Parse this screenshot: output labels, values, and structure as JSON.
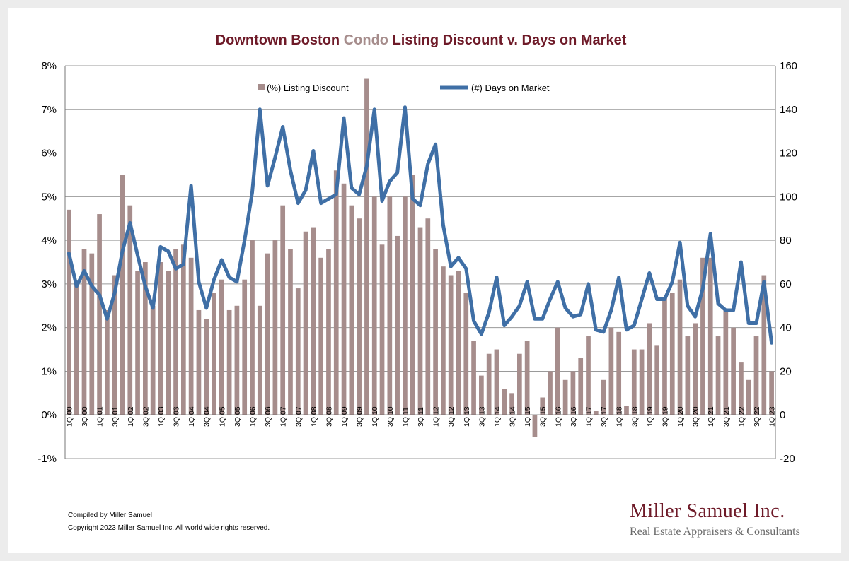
{
  "chart_data": {
    "type": "bar",
    "title_parts": [
      "Downtown Boston ",
      "Condo",
      " Listing Discount v. Days on Market"
    ],
    "left_axis": {
      "min": -1,
      "max": 8,
      "step": 1,
      "suffix": "%"
    },
    "right_axis": {
      "min": -20,
      "max": 160,
      "step": 20
    },
    "x_labels": [
      "1Q 00",
      "3Q 00",
      "1Q 01",
      "3Q 01",
      "1Q 02",
      "3Q 02",
      "1Q 03",
      "3Q 03",
      "1Q 04",
      "3Q 04",
      "1Q 05",
      "3Q 05",
      "1Q 06",
      "3Q 06",
      "1Q 07",
      "3Q 07",
      "1Q 08",
      "3Q 08",
      "1Q 09",
      "3Q 09",
      "1Q 10",
      "3Q 10",
      "1Q 11",
      "3Q 11",
      "1Q 12",
      "3Q 12",
      "1Q 13",
      "3Q 13",
      "1Q 14",
      "3Q 14",
      "1Q 15",
      "3Q 15",
      "1Q 16",
      "3Q 16",
      "1Q 17",
      "3Q 17",
      "1Q 18",
      "3Q 18",
      "1Q 19",
      "3Q 19",
      "1Q 20",
      "3Q 20",
      "1Q 21",
      "3Q 21",
      "1Q 22",
      "3Q 22",
      "1Q 23"
    ],
    "series": [
      {
        "name": "(%) Listing Discount",
        "type": "bar",
        "color": "#a68d8c",
        "values": [
          4.7,
          3.0,
          3.8,
          3.7,
          4.6,
          2.4,
          3.2,
          5.5,
          4.8,
          3.3,
          3.5,
          2.5,
          3.5,
          3.3,
          3.8,
          3.9,
          3.6,
          2.4,
          2.2,
          2.8,
          3.1,
          2.4,
          2.5,
          3.1,
          4.0,
          2.5,
          3.7,
          4.0,
          4.8,
          3.8,
          2.9,
          4.2,
          4.3,
          3.6,
          3.8,
          5.6,
          5.3,
          4.8,
          4.5,
          7.7,
          5.0,
          3.9,
          5.0,
          4.1,
          5.0,
          5.5,
          4.3,
          4.5,
          3.8,
          3.4,
          3.2,
          3.3,
          2.8,
          1.7,
          0.9,
          1.4,
          1.5,
          0.6,
          0.5,
          1.4,
          1.7,
          -0.5,
          0.4,
          1.0,
          2.0,
          0.8,
          1.0,
          1.3,
          1.8,
          0.1,
          0.8,
          2.0,
          1.9,
          0.2,
          1.5,
          1.5,
          2.1,
          1.6,
          2.7,
          2.8,
          3.1,
          1.8,
          2.1,
          3.6,
          3.6,
          1.8,
          2.4,
          2.0,
          1.2,
          0.8,
          1.8,
          3.2,
          1.0
        ]
      },
      {
        "name": "(#) Days on Market",
        "type": "line",
        "color": "#3f6fa6",
        "values": [
          74,
          59,
          66,
          59,
          55,
          44,
          56,
          75,
          88,
          73,
          59,
          49,
          77,
          75,
          67,
          69,
          105,
          61,
          49,
          62,
          71,
          63,
          61,
          80,
          102,
          140,
          105,
          118,
          132,
          112,
          97,
          103,
          121,
          97,
          99,
          101,
          136,
          104,
          101,
          114,
          140,
          98,
          107,
          111,
          141,
          99,
          96,
          115,
          124,
          87,
          68,
          72,
          67,
          43,
          37,
          47,
          63,
          41,
          45,
          50,
          61,
          44,
          44,
          53,
          61,
          49,
          45,
          46,
          60,
          39,
          38,
          48,
          63,
          39,
          41,
          53,
          65,
          53,
          53,
          61,
          79,
          50,
          45,
          58,
          83,
          51,
          48,
          48,
          70,
          42,
          42,
          61,
          33
        ]
      }
    ]
  },
  "footer": {
    "compiled": "Compiled by Miller Samuel",
    "copyright": "Copyright 2023 Miller Samuel Inc.  All world wide rights reserved."
  },
  "brand": {
    "name": "Miller Samuel Inc.",
    "tagline": "Real Estate Appraisers & Consultants"
  }
}
